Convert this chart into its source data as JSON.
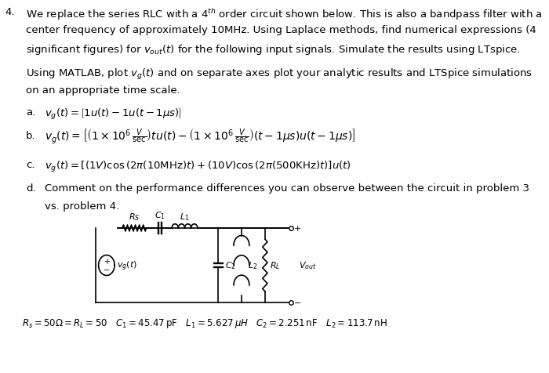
{
  "title_num": "4.",
  "bg_color": "#ffffff",
  "text_color": "#000000",
  "main_text_lines": [
    "We replace the series RLC with a 4ᵗʰ order circuit shown below. This is also a bandpass filter with a",
    "center frequency of approximately 10MHz. Using Laplace methods, find numerical expressions (4",
    "significant figures) for $v_{out}(t)$ for the following input signals. Simulate the results using LTspice."
  ],
  "matlab_line": "Using MATLAB, plot $v_g(t)$ and on separate axes plot your analytic results and LTSpice simulations",
  "matlab_line2": "on an appropriate time scale.",
  "items": [
    {
      "label": "a.",
      "text": "$v_g(t) = \\left[1u(t) - 1u(t-1\\mu s)\\right]$"
    },
    {
      "label": "b.",
      "text": "$v_g(t) = \\left[\\left(1{\\times}10^6\\,\\dfrac{V}{\\text{sec}}\\right)tu(t) - \\left(1{\\times}10^6\\,\\dfrac{V}{\\text{sec}}\\right)(t-1\\mu s)u(t-1\\mu s)\\right]$"
    },
    {
      "label": "c.",
      "text": "$v_g(t) = \\left[(1V)\\cos\\left(2\\pi(10\\text{MHz})t\\right) + (10V)\\cos\\left(2\\pi(500\\text{KHz})t\\right)\\right]u(t)$"
    },
    {
      "label": "d.",
      "text": "Comment on the performance differences you can observe between the circuit in problem 3",
      "text2": "vs. problem 4."
    }
  ],
  "params_text": "$R_s = 50\\Omega = R_L = 50 \\quad C_1 = 45.47\\,\\text{pF} \\quad L_1 = 5.627\\,\\mu H \\quad C_2 = 2.251\\,\\text{nF} \\quad L_2 = 113.7\\,\\text{nH}$"
}
